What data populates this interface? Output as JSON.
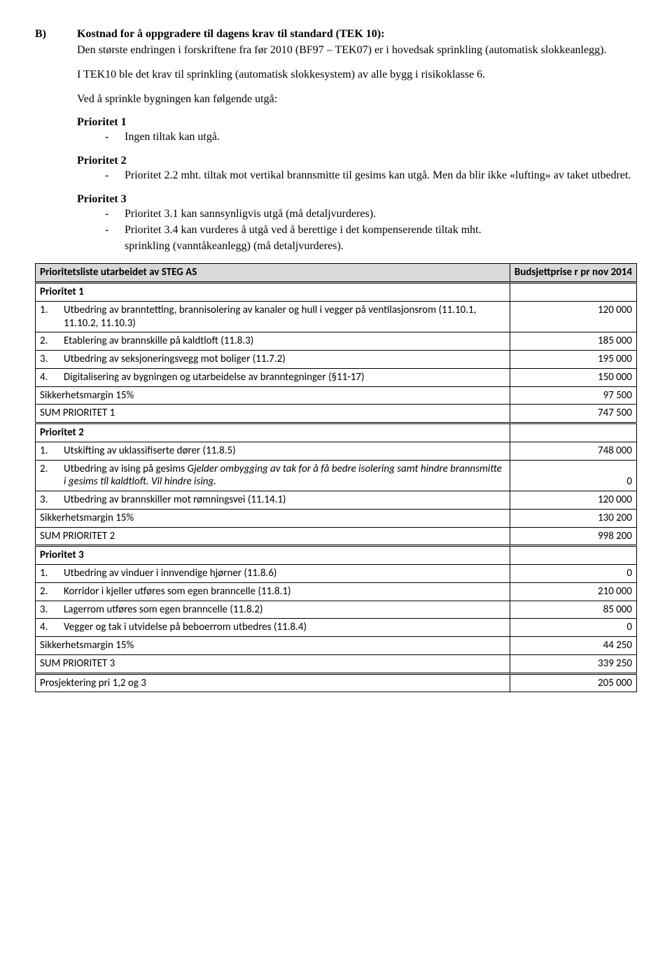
{
  "sectionB": {
    "label": "B)",
    "title": "Kostnad for å oppgradere til dagens krav til standard (TEK 10):",
    "para1": "Den største endringen i forskriftene fra før 2010 (BF97 – TEK07) er i hovedsak sprinkling (automatisk slokkeanlegg).",
    "para2": "I TEK10 ble det krav til sprinkling (automatisk slokkesystem) av alle bygg i risikoklasse 6.",
    "para3": "Ved å sprinkle bygningen kan følgende utgå:",
    "pri1": {
      "head": "Prioritet 1",
      "b1": "Ingen tiltak kan utgå."
    },
    "pri2": {
      "head": "Prioritet 2",
      "b1": "Prioritet 2.2 mht. tiltak mot vertikal brannsmitte til gesims kan utgå. Men da blir ikke «lufting» av taket utbedret."
    },
    "pri3": {
      "head": "Prioritet 3",
      "b1": "Prioritet 3.1 kan sannsynligvis utgå (må detaljvurderes).",
      "b2": "Prioritet 3.4 kan vurderes å utgå ved å berettige i det kompenserende tiltak mht.",
      "after": "sprinkling (vanntåkeanlegg) (må detaljvurderes)."
    }
  },
  "table": {
    "header_left": "Prioritetsliste utarbeidet av STEG AS",
    "header_right": "Budsjettprise r pr nov 2014",
    "p1": {
      "head": "Prioritet 1",
      "r1_n": "1.",
      "r1_t": "Utbedring av branntetting, brannisolering av kanaler og hull i vegger på ventilasjonsrom (11.10.1, 11.10.2, 11.10.3)",
      "r1_v": "120 000",
      "r2_n": "2.",
      "r2_t": "Etablering av brannskille på kaldtloft (11.8.3)",
      "r2_v": "185 000",
      "r3_n": "3.",
      "r3_t": "Utbedring av seksjoneringsvegg mot boliger (11.7.2)",
      "r3_v": "195 000",
      "r4_n": "4.",
      "r4_t": "Digitalisering av bygningen og utarbeidelse av branntegninger (§11-17)",
      "r4_v": "150 000",
      "marg_t": "Sikkerhetsmargin 15%",
      "marg_v": "97 500",
      "sum_t": "SUM PRIORITET 1",
      "sum_v": "747 500"
    },
    "p2": {
      "head": "Prioritet 2",
      "r1_n": "1.",
      "r1_t": "Utskifting av uklassifiserte dører (11.8.5)",
      "r1_v": "748 000",
      "r2_n": "2.",
      "r2_ta": "Utbedring av ising på gesims ",
      "r2_tb": "Gjelder ombygging av tak for å få bedre isolering samt hindre brannsmitte i gesims til kaldtloft. Vil hindre ising.",
      "r2_v": "0",
      "r3_n": "3.",
      "r3_t": "Utbedring av brannskiller mot rømningsvei (11.14.1)",
      "r3_v": "120 000",
      "marg_t": "Sikkerhetsmargin 15%",
      "marg_v": "130 200",
      "sum_t": "SUM PRIORITET 2",
      "sum_v": "998 200"
    },
    "p3": {
      "head": "Prioritet 3",
      "r1_n": "1.",
      "r1_t": "Utbedring av vinduer i innvendige hjørner (11.8.6)",
      "r1_v": "0",
      "r2_n": "2.",
      "r2_t": "Korridor i kjeller utføres som egen branncelle (11.8.1)",
      "r2_v": "210 000",
      "r3_n": "3.",
      "r3_t": "Lagerrom utføres som egen branncelle (11.8.2)",
      "r3_v": "85 000",
      "r4_n": "4.",
      "r4_t": "Vegger og tak i utvidelse på beboerrom utbedres (11.8.4)",
      "r4_v": "0",
      "marg_t": "Sikkerhetsmargin 15%",
      "marg_v": "44 250",
      "sum_t": "SUM PRIORITET 3",
      "sum_v": "339 250"
    },
    "proj_t": "Prosjektering pri 1,2 og 3",
    "proj_v": "205 000"
  }
}
